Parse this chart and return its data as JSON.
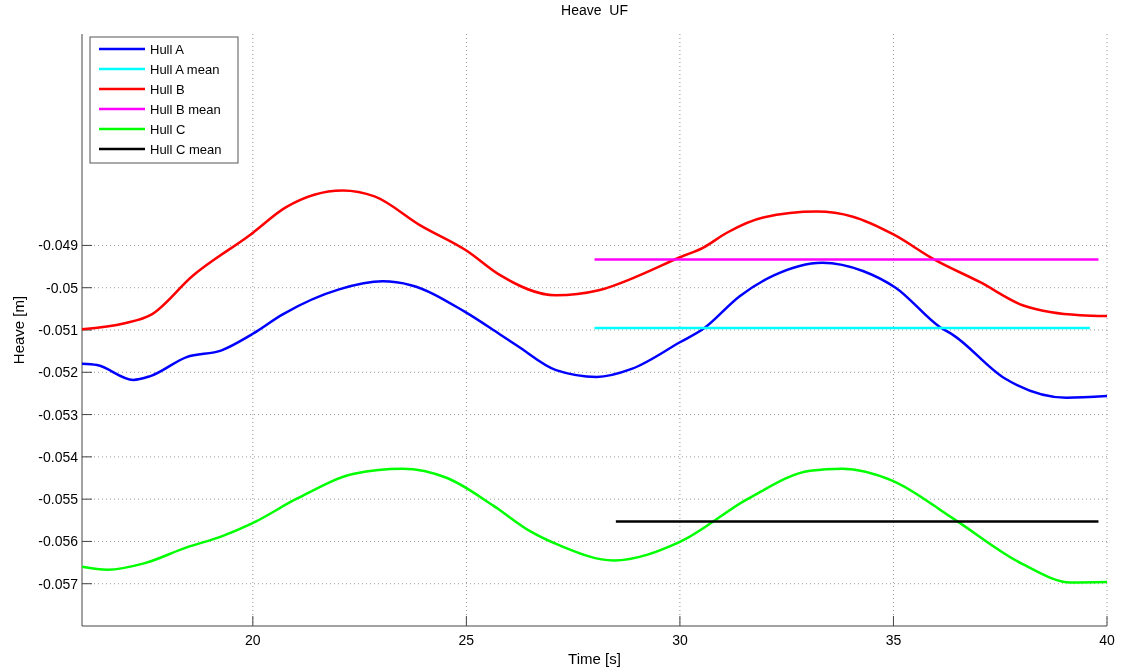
{
  "chart_data": {
    "type": "line",
    "title": "Heave  UF",
    "xlabel": "Time [s]",
    "ylabel": "Heave [m]",
    "xlim": [
      16,
      40
    ],
    "xticks": [
      20,
      25,
      30,
      35,
      40
    ],
    "ylim": [
      -0.058,
      -0.044
    ],
    "yticks": [
      -0.057,
      -0.056,
      -0.055,
      -0.054,
      -0.053,
      -0.052,
      -0.051,
      -0.05,
      -0.049
    ],
    "grid": true,
    "legend": "top left",
    "line_style": "solid",
    "series": [
      {
        "name": "Hull A",
        "color": "#0000ff",
        "x": [
          16,
          16.35,
          17.2,
          17.6,
          18.45,
          19.27,
          19.95,
          20.7,
          22.02,
          23.04,
          23.7,
          24.95,
          25.78,
          26.2,
          27.1,
          28.05,
          28.87,
          30,
          30.55,
          31.4,
          32.2,
          33.33,
          34.3,
          35.05,
          36.1,
          36.4,
          37.6,
          39.05,
          40
        ],
        "values": [
          -0.0518,
          -0.05183,
          -0.05218,
          -0.05209,
          -0.05164,
          -0.05148,
          -0.05112,
          -0.05063,
          -0.05004,
          -0.04985,
          -0.04994,
          -0.05056,
          -0.0511,
          -0.05138,
          -0.05195,
          -0.05211,
          -0.05192,
          -0.05129,
          -0.05097,
          -0.0502,
          -0.04971,
          -0.04941,
          -0.04961,
          -0.05,
          -0.05094,
          -0.05112,
          -0.05214,
          -0.0526,
          -0.05256
        ]
      },
      {
        "name": "Hull A mean",
        "color": "#00ffff",
        "x": [
          28,
          39.6
        ],
        "values": [
          -0.05095,
          -0.05095
        ]
      },
      {
        "name": "Hull B",
        "color": "#ff0000",
        "x": [
          16,
          17,
          17.6,
          18.6,
          19.95,
          20.77,
          22.1,
          22.85,
          23.93,
          25,
          25.8,
          27.1,
          28.1,
          29.05,
          30,
          30.55,
          31.1,
          31.95,
          33.2,
          34.05,
          35,
          35.95,
          37.03,
          38.04,
          38.7,
          39.37,
          40
        ],
        "values": [
          -0.05098,
          -0.05084,
          -0.05065,
          -0.04971,
          -0.04874,
          -0.0481,
          -0.0477,
          -0.04784,
          -0.04853,
          -0.04912,
          -0.04971,
          -0.05018,
          -0.05006,
          -0.04971,
          -0.04928,
          -0.04905,
          -0.0487,
          -0.04834,
          -0.0482,
          -0.04832,
          -0.04874,
          -0.04933,
          -0.04987,
          -0.05042,
          -0.05058,
          -0.05065,
          -0.05067
        ]
      },
      {
        "name": "Hull B mean",
        "color": "#ff00ff",
        "x": [
          28,
          39.8
        ],
        "values": [
          -0.04933,
          -0.04933
        ]
      },
      {
        "name": "Hull C",
        "color": "#00ff00",
        "x": [
          16,
          16.6,
          17.45,
          18.45,
          19.27,
          19.97,
          21.03,
          22.37,
          23.5,
          24.55,
          25.64,
          26.48,
          27.2,
          28.45,
          30,
          31.6,
          33.05,
          33.8,
          34.97,
          36.4,
          38.05,
          39.15,
          40
        ],
        "values": [
          -0.0566,
          -0.05667,
          -0.05652,
          -0.05614,
          -0.05588,
          -0.05558,
          -0.05499,
          -0.0544,
          -0.05428,
          -0.0545,
          -0.05516,
          -0.05575,
          -0.0561,
          -0.05645,
          -0.05601,
          -0.05499,
          -0.05433,
          -0.05428,
          -0.05456,
          -0.05546,
          -0.05655,
          -0.05697,
          -0.05696
        ]
      },
      {
        "name": "Hull C mean",
        "color": "#000000",
        "x": [
          28.5,
          39.8
        ],
        "values": [
          -0.05553,
          -0.05553
        ]
      }
    ]
  }
}
